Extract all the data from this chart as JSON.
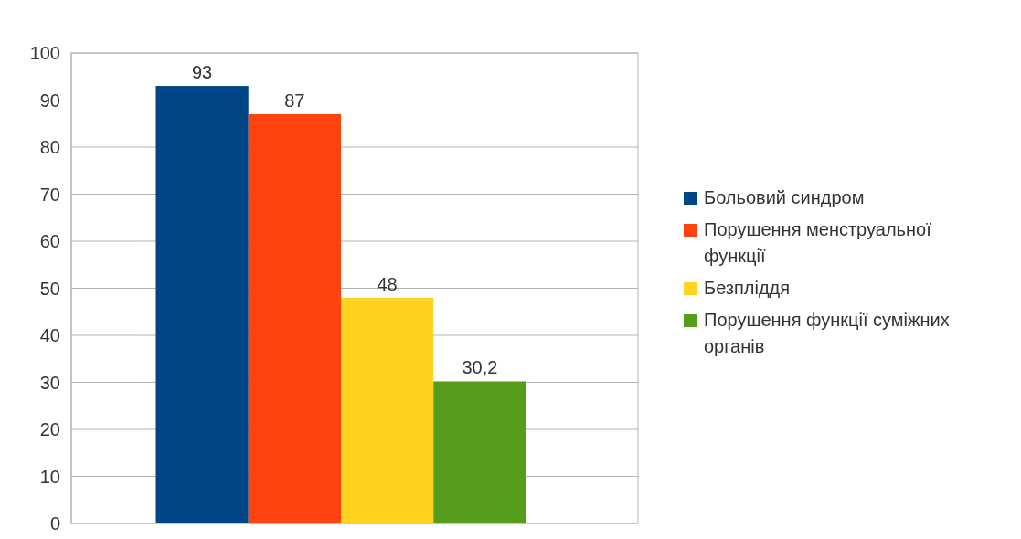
{
  "chart_data": {
    "type": "bar",
    "categories": [
      null
    ],
    "series": [
      {
        "name": "Больовий синдром",
        "color": "#004586",
        "values": [
          93
        ],
        "value_labels": [
          "93"
        ]
      },
      {
        "name": "Порушення менструальної функції",
        "color": "#ff420e",
        "values": [
          87
        ],
        "value_labels": [
          "87"
        ]
      },
      {
        "name": "Безпліддя",
        "color": "#ffd320",
        "values": [
          48
        ],
        "value_labels": [
          "48"
        ]
      },
      {
        "name": "Порушення функції суміжних органів",
        "color": "#579d1c",
        "values": [
          30.2
        ],
        "value_labels": [
          "30,2"
        ]
      }
    ],
    "ylim": [
      0,
      100
    ],
    "yticks": [
      0,
      10,
      20,
      30,
      40,
      50,
      60,
      70,
      80,
      90,
      100
    ],
    "grid": "y",
    "legend": "right"
  }
}
